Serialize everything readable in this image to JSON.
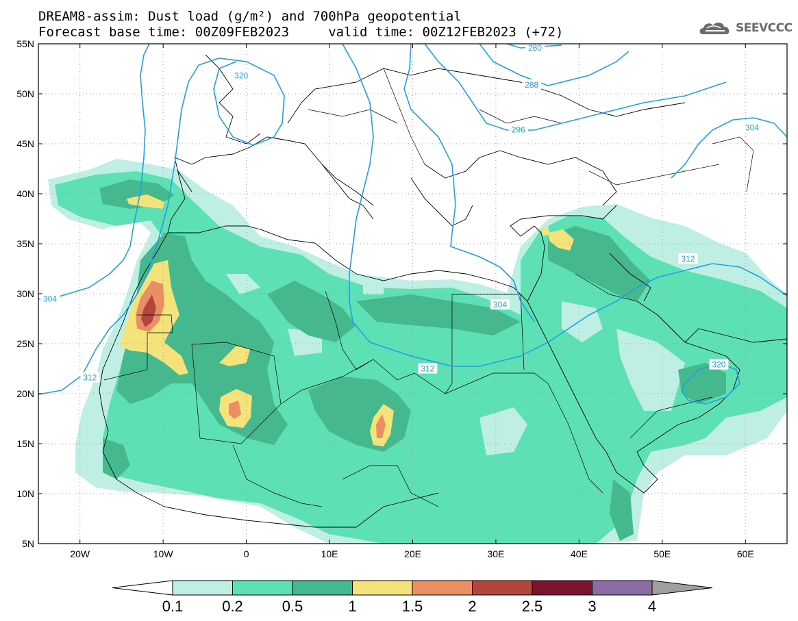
{
  "title": {
    "line1": "DREAM8-assim: Dust load (g/m²) and 700hPa geopotential",
    "line2": "Forecast base time: 00Z09FEB2023     valid time: 00Z12FEB2023 (+72)"
  },
  "logo": {
    "text": "SEEVCCC",
    "icon": "cloud-logo-icon"
  },
  "map": {
    "lon_range": [
      -25,
      65
    ],
    "lat_range": [
      5,
      55
    ],
    "x_ticks": [
      {
        "lon": -20,
        "label": "20W"
      },
      {
        "lon": -10,
        "label": "10W"
      },
      {
        "lon": 0,
        "label": "0"
      },
      {
        "lon": 10,
        "label": "10E"
      },
      {
        "lon": 20,
        "label": "20E"
      },
      {
        "lon": 30,
        "label": "30E"
      },
      {
        "lon": 40,
        "label": "40E"
      },
      {
        "lon": 50,
        "label": "50E"
      },
      {
        "lon": 60,
        "label": "60E"
      }
    ],
    "y_ticks": [
      {
        "lat": 55,
        "label": "55N"
      },
      {
        "lat": 50,
        "label": "50N"
      },
      {
        "lat": 45,
        "label": "45N"
      },
      {
        "lat": 40,
        "label": "40N"
      },
      {
        "lat": 35,
        "label": "35N"
      },
      {
        "lat": 30,
        "label": "30N"
      },
      {
        "lat": 25,
        "label": "25N"
      },
      {
        "lat": 20,
        "label": "20N"
      },
      {
        "lat": 15,
        "label": "15N"
      },
      {
        "lat": 10,
        "label": "10N"
      },
      {
        "lat": 5,
        "label": "5N"
      }
    ],
    "contour_color": "#1ea0e6",
    "contour_labels": [
      {
        "text": "280",
        "lon": 34.7,
        "lat": 54.6
      },
      {
        "text": "288",
        "lon": 34.3,
        "lat": 50.9
      },
      {
        "text": "296",
        "lon": 32.7,
        "lat": 46.4
      },
      {
        "text": "304",
        "lon": 60.8,
        "lat": 46.6
      },
      {
        "text": "320",
        "lon": -0.6,
        "lat": 51.8
      },
      {
        "text": "304",
        "lon": -23.6,
        "lat": 29.5
      },
      {
        "text": "312",
        "lon": 53.1,
        "lat": 33.5
      },
      {
        "text": "304",
        "lon": 30.5,
        "lat": 28.9
      },
      {
        "text": "312",
        "lon": 21.8,
        "lat": 22.5
      },
      {
        "text": "320",
        "lon": 56.8,
        "lat": 22.9
      },
      {
        "text": "312",
        "lon": -18.8,
        "lat": 21.6
      }
    ]
  },
  "colorbar": {
    "labels": [
      "0.1",
      "0.2",
      "0.5",
      "1",
      "1.5",
      "2",
      "2.5",
      "3",
      "4"
    ],
    "colors": [
      "#bfeee4",
      "#5de0b4",
      "#45b88e",
      "#f4e27a",
      "#ea8e63",
      "#b2463d",
      "#7c1430",
      "#8c6ca4"
    ],
    "under_color": "#ffffff",
    "over_color": "#a0a0a0"
  }
}
